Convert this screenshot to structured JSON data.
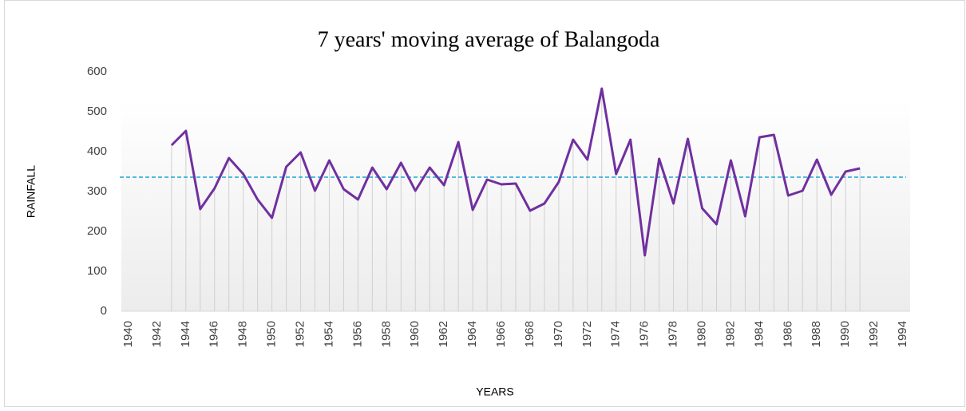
{
  "chart_data": {
    "type": "line",
    "title": "7 years' moving average of Balangoda",
    "x_label": "YEARS",
    "y_label": "RAINFALL",
    "categories": [
      "1940",
      null,
      "1942",
      null,
      "1944",
      null,
      "1946",
      null,
      "1948",
      null,
      "1950",
      null,
      "1952",
      null,
      "1954",
      null,
      "1956",
      null,
      "1958",
      null,
      "1960",
      null,
      "1962",
      null,
      "1964",
      null,
      "1966",
      null,
      "1968",
      null,
      "1970",
      null,
      "1972",
      null,
      "1974",
      null,
      "1976",
      null,
      "1978",
      null,
      "1980",
      null,
      "1982",
      null,
      "1984",
      null,
      "1986",
      null,
      "1988",
      null,
      "1990",
      null,
      "1992",
      null,
      "1994"
    ],
    "values": [
      null,
      null,
      null,
      416,
      452,
      256,
      308,
      384,
      344,
      280,
      234,
      362,
      398,
      302,
      378,
      306,
      280,
      360,
      306,
      372,
      302,
      360,
      316,
      424,
      254,
      330,
      318,
      320,
      252,
      270,
      324,
      430,
      380,
      558,
      344,
      430,
      140,
      382,
      270,
      432,
      258,
      218,
      378,
      238,
      436,
      442,
      290,
      302,
      380,
      292,
      350,
      358,
      null,
      null,
      null
    ],
    "color": "#7030a0",
    "drop_line_color": "#d0d0d0",
    "reference_line": {
      "value": 336,
      "color": "#1aa6d8"
    },
    "ylim": [
      0,
      600
    ],
    "yticks": [
      0,
      100,
      200,
      300,
      400,
      500,
      600
    ],
    "grid": false
  }
}
